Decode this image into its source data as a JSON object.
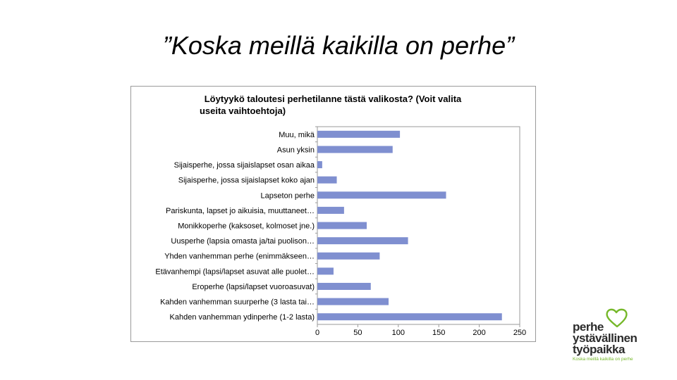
{
  "slide": {
    "title": "”Koska meillä kaikilla on perhe”"
  },
  "colors": {
    "bar": "#7f8fd0",
    "logo_green": "#76b82a",
    "logo_text": "#2b2b2b"
  },
  "logo": {
    "line1": "perhe",
    "line2": "ystävällinen",
    "line3": "työpaikka",
    "tagline": "Koska meillä kaikilla on perhe",
    "icon": "heart-icon"
  },
  "chart_data": {
    "type": "bar",
    "orientation": "horizontal",
    "title_lines": [
      "Löytyykö  taloutesi perhetilanne tästä valikosta? (Voit valita",
      "useita vaihtoehtoja)"
    ],
    "categories": [
      "Muu, mikä",
      "Asun yksin",
      "Sijaisperhe, jossa sijaislapset osan aikaa",
      "Sijaisperhe, jossa sijaislapset koko ajan",
      "Lapseton perhe",
      "Pariskunta, lapset jo aikuisia, muuttaneet…",
      "Monikkoperhe (kaksoset, kolmoset jne.)",
      "Uusperhe (lapsia omasta ja/tai puolison…",
      "Yhden vanhemman perhe (enimmäkseen…",
      "Etävanhempi (lapsi/lapset asuvat alle puolet…",
      "Eroperhe (lapsi/lapset vuoroasuvat)",
      "Kahden vanhemman suurperhe (3 lasta tai…",
      "Kahden vanhemman ydinperhe (1-2 lasta)"
    ],
    "values": [
      102,
      93,
      6,
      24,
      159,
      33,
      61,
      112,
      77,
      20,
      66,
      88,
      228
    ],
    "xlim": [
      0,
      250
    ],
    "xticks": [
      "0",
      "50",
      "100",
      "150",
      "200",
      "250"
    ],
    "grid": false,
    "legend": "none"
  }
}
